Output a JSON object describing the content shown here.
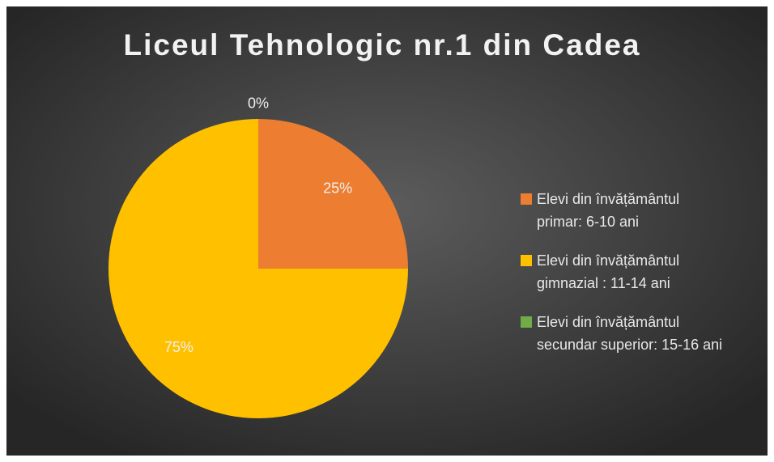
{
  "chart_data": {
    "type": "pie",
    "title": "Liceul Tehnologic nr.1 din Cadea",
    "categories": [
      "Elevi din învățământul\nprimar: 6-10 ani",
      "Elevi din învățământul\ngimnazial : 11-14 ani",
      "Elevi din învățământul\nsecundar superior: 15-16 ani"
    ],
    "values": [
      25,
      75,
      0
    ],
    "value_labels": [
      "25%",
      "75%",
      "0%"
    ],
    "colors": [
      "#ED7D31",
      "#FFC000",
      "#70AD47"
    ],
    "legend": "right"
  }
}
